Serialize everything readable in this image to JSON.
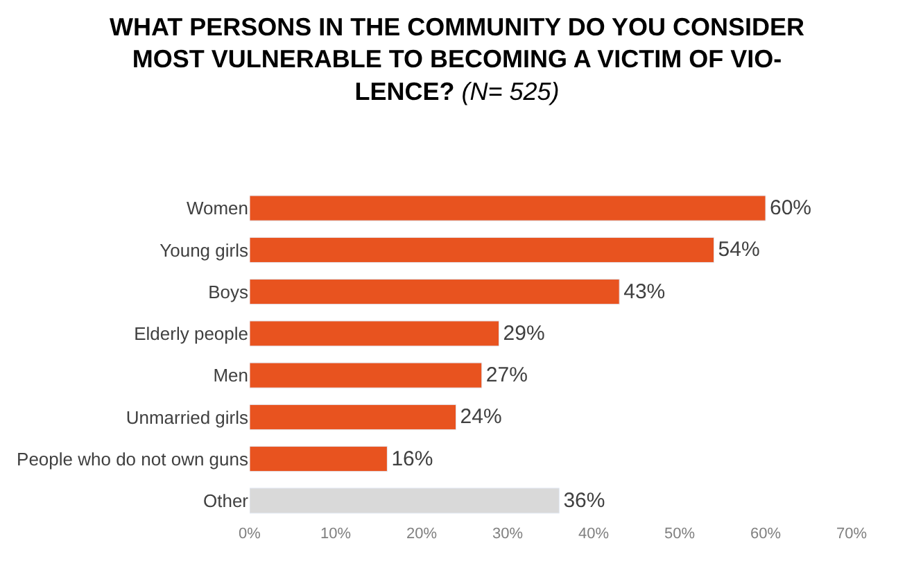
{
  "chart_data": {
    "type": "bar",
    "orientation": "horizontal",
    "title": "WHAT PERSONS IN THE COMMUNITY DO YOU CONSIDER\nMOST VULNERABLE TO BECOMING A VICTIM OF VIO-\nLENCE?",
    "subtitle": "(N= 525)",
    "categories": [
      "Women",
      "Young girls",
      "Boys",
      "Elderly people",
      "Men",
      "Unmarried girls",
      "People who do not own guns",
      "Other"
    ],
    "values": [
      60,
      54,
      43,
      29,
      27,
      24,
      16,
      36
    ],
    "colors": [
      "#e8531f",
      "#e8531f",
      "#e8531f",
      "#e8531f",
      "#e8531f",
      "#e8531f",
      "#e8531f",
      "#d9d9d9"
    ],
    "value_labels": [
      "60%",
      "54%",
      "43%",
      "29%",
      "27%",
      "24%",
      "16%",
      "36%"
    ],
    "xlim": [
      0,
      70
    ],
    "xticks": [
      {
        "value": 0,
        "label": "0%"
      },
      {
        "value": 10,
        "label": "10%"
      },
      {
        "value": 20,
        "label": "20%"
      },
      {
        "value": 30,
        "label": "30%"
      },
      {
        "value": 40,
        "label": "40%"
      },
      {
        "value": 50,
        "label": "50%"
      },
      {
        "value": 60,
        "label": "60%"
      },
      {
        "value": 70,
        "label": "70%"
      }
    ],
    "legend": false
  }
}
